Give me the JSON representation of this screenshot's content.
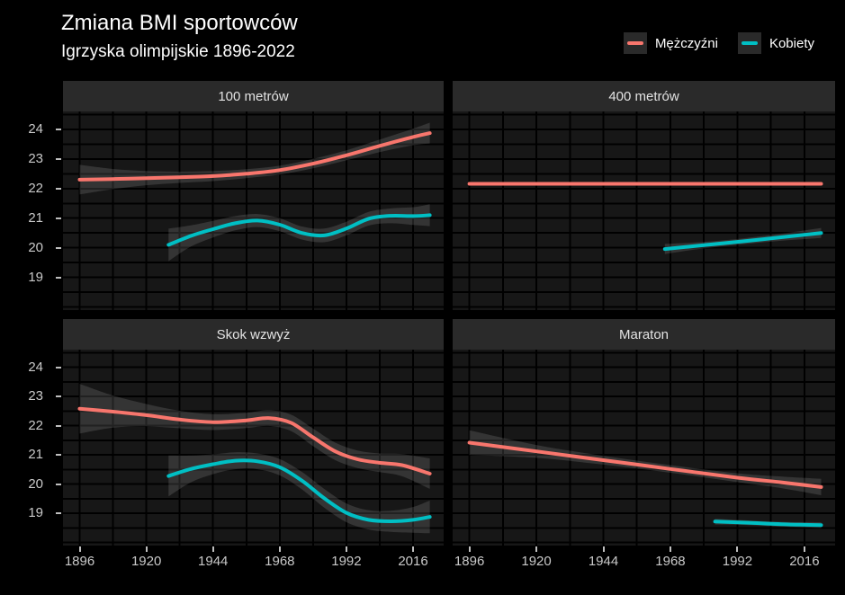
{
  "header": {
    "title": "Zmiana BMI sportowców",
    "subtitle": "Igrzyska olimpijskie 1896-2022"
  },
  "legend": {
    "items": [
      {
        "label": "Mężczyźni",
        "color": "#F8766D"
      },
      {
        "label": "Kobiety",
        "color": "#00BFC4"
      }
    ]
  },
  "colors": {
    "background": "#000000",
    "panel_background": "#171717",
    "grid_line": "#000000",
    "strip_background": "#2a2a2a",
    "axis_text": "#c9c9c9",
    "men_line": "#F8766D",
    "women_line": "#00BFC4",
    "ribbon": "rgba(205,205,205,0.16)"
  },
  "chart_data": {
    "type": "line",
    "title": "Zmiana BMI sportowców",
    "subtitle": "Igrzyska olimpijskie 1896-2022",
    "xlabel": "",
    "ylabel": "",
    "x_domain": [
      1890,
      2027
    ],
    "y_domain": [
      17.9,
      24.6
    ],
    "x_ticks": [
      1896,
      1920,
      1944,
      1968,
      1992,
      2016
    ],
    "y_ticks": [
      19,
      20,
      21,
      22,
      23,
      24
    ],
    "x_minor_step": 12,
    "y_minor_step": 0.5,
    "grid": "on",
    "legend_position": "top-right",
    "facets": [
      {
        "title": "100 metrów",
        "series": [
          {
            "name": "Mężczyźni",
            "color": "#F8766D",
            "x": [
              1896,
              1908,
              1920,
              1932,
              1944,
              1956,
              1968,
              1980,
              1992,
              2004,
              2016,
              2022
            ],
            "y": [
              22.3,
              22.32,
              22.35,
              22.38,
              22.42,
              22.5,
              22.62,
              22.84,
              23.12,
              23.44,
              23.74,
              23.87
            ],
            "band": [
              0.5,
              0.34,
              0.24,
              0.19,
              0.17,
              0.15,
              0.15,
              0.16,
              0.17,
              0.21,
              0.28,
              0.35
            ]
          },
          {
            "name": "Kobiety",
            "color": "#00BFC4",
            "x": [
              1928,
              1936,
              1944,
              1952,
              1960,
              1968,
              1976,
              1984,
              1992,
              2000,
              2008,
              2016,
              2022
            ],
            "y": [
              20.1,
              20.4,
              20.63,
              20.83,
              20.92,
              20.78,
              20.5,
              20.42,
              20.65,
              20.98,
              21.08,
              21.07,
              21.1
            ],
            "band": [
              0.55,
              0.36,
              0.28,
              0.24,
              0.22,
              0.22,
              0.22,
              0.23,
              0.23,
              0.23,
              0.25,
              0.3,
              0.37
            ]
          }
        ]
      },
      {
        "title": "400 metrów",
        "series": [
          {
            "name": "Mężczyźni",
            "color": "#F8766D",
            "x": [
              1896,
              2022
            ],
            "y": [
              22.16,
              22.16
            ],
            "band": [
              0.04,
              0.04
            ]
          },
          {
            "name": "Kobiety",
            "color": "#00BFC4",
            "x": [
              1966,
              1980,
              1994,
              2008,
              2022
            ],
            "y": [
              19.96,
              20.09,
              20.22,
              20.36,
              20.5
            ],
            "band": [
              0.17,
              0.11,
              0.1,
              0.12,
              0.17
            ]
          }
        ]
      },
      {
        "title": "Skok wzwyż",
        "series": [
          {
            "name": "Mężczyźni",
            "color": "#F8766D",
            "x": [
              1896,
              1908,
              1920,
              1932,
              1944,
              1956,
              1964,
              1972,
              1980,
              1988,
              1996,
              2004,
              2012,
              2022
            ],
            "y": [
              22.58,
              22.48,
              22.36,
              22.21,
              22.12,
              22.18,
              22.26,
              22.1,
              21.6,
              21.12,
              20.85,
              20.73,
              20.65,
              20.36
            ],
            "band": [
              0.85,
              0.55,
              0.38,
              0.3,
              0.27,
              0.26,
              0.27,
              0.28,
              0.3,
              0.3,
              0.3,
              0.32,
              0.38,
              0.52
            ]
          },
          {
            "name": "Kobiety",
            "color": "#00BFC4",
            "x": [
              1928,
              1936,
              1944,
              1952,
              1960,
              1968,
              1976,
              1984,
              1992,
              2000,
              2008,
              2016,
              2022
            ],
            "y": [
              20.28,
              20.52,
              20.68,
              20.8,
              20.78,
              20.58,
              20.12,
              19.52,
              19.02,
              18.78,
              18.73,
              18.78,
              18.88
            ],
            "band": [
              0.7,
              0.46,
              0.34,
              0.29,
              0.27,
              0.28,
              0.3,
              0.32,
              0.32,
              0.33,
              0.36,
              0.44,
              0.56
            ]
          }
        ]
      },
      {
        "title": "Maraton",
        "series": [
          {
            "name": "Mężczyźni",
            "color": "#F8766D",
            "x": [
              1896,
              1920,
              1944,
              1968,
              1992,
              2008,
              2022
            ],
            "y": [
              21.42,
              21.12,
              20.82,
              20.52,
              20.22,
              20.06,
              19.9
            ],
            "band": [
              0.42,
              0.22,
              0.15,
              0.13,
              0.15,
              0.2,
              0.28
            ]
          },
          {
            "name": "Kobiety",
            "color": "#00BFC4",
            "x": [
              1984,
              1996,
              2008,
              2022
            ],
            "y": [
              18.72,
              18.68,
              18.63,
              18.6
            ],
            "band": [
              0.1,
              0.08,
              0.08,
              0.1
            ]
          }
        ]
      }
    ]
  }
}
